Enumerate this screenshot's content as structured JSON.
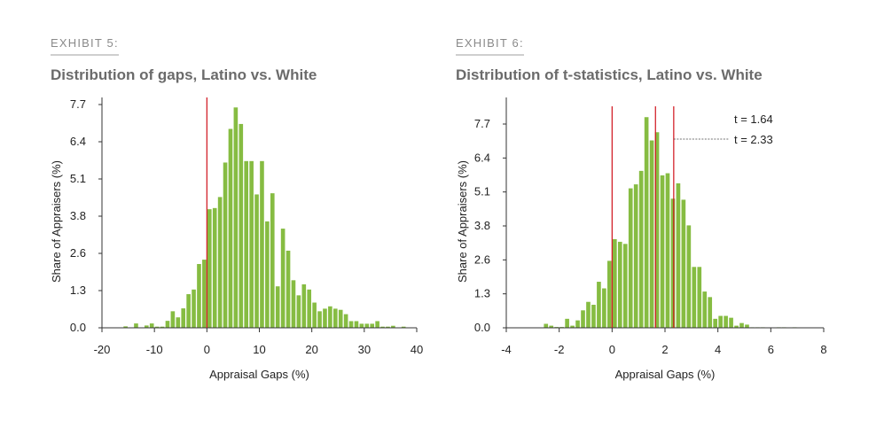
{
  "colors": {
    "bar": "#86bc42",
    "marker_line": "#d0111b",
    "axis": "#333333"
  },
  "exhibits": [
    {
      "label": "EXHIBIT 5:",
      "title": "Distribution of gaps, Latino vs. White"
    },
    {
      "label": "EXHIBIT 6:",
      "title": "Distribution of t-statistics, Latino vs. White"
    }
  ],
  "chart_data": [
    {
      "type": "bar",
      "xlabel": "Appraisal Gaps (%)",
      "ylabel": "Share of Appraisers (%)",
      "xlim": [
        -20,
        40
      ],
      "ylim": [
        0,
        8.1
      ],
      "xticks": [
        "-20",
        "-10",
        "0",
        "10",
        "20",
        "30",
        "40"
      ],
      "xtick_values": [
        -20,
        -10,
        0,
        10,
        20,
        30,
        40
      ],
      "yticks": [
        "0.0",
        "1.3",
        "2.6",
        "3.8",
        "5.1",
        "6.4",
        "7.7"
      ],
      "bin_width": 1,
      "x": [
        -15.5,
        -13.5,
        -11.5,
        -10.5,
        -9.5,
        -8.5,
        -7.5,
        -6.5,
        -5.5,
        -4.5,
        -3.5,
        -2.5,
        -1.5,
        -0.5,
        0.5,
        1.5,
        2.5,
        3.5,
        4.5,
        5.5,
        6.5,
        7.5,
        8.5,
        9.5,
        10.5,
        11.5,
        12.5,
        13.5,
        14.5,
        15.5,
        16.5,
        17.5,
        18.5,
        19.5,
        20.5,
        21.5,
        22.5,
        23.5,
        24.5,
        25.5,
        26.5,
        27.5,
        28.5,
        29.5,
        30.5,
        31.5,
        32.5,
        33.5,
        34.5,
        35.5,
        37.5
      ],
      "values": [
        0.05,
        0.15,
        0.08,
        0.15,
        0.04,
        0.04,
        0.24,
        0.57,
        0.36,
        0.67,
        1.16,
        1.32,
        2.2,
        2.35,
        4.09,
        4.13,
        4.51,
        5.7,
        6.86,
        7.6,
        7.03,
        5.75,
        5.75,
        4.6,
        5.75,
        3.67,
        4.64,
        1.43,
        3.42,
        2.66,
        1.64,
        1.12,
        1.5,
        1.32,
        0.87,
        0.57,
        0.66,
        0.74,
        0.66,
        0.62,
        0.47,
        0.23,
        0.23,
        0.14,
        0.14,
        0.14,
        0.23,
        0.04,
        0.04,
        0.07,
        0.04
      ],
      "vlines": [
        {
          "x": 0
        }
      ],
      "grid": false
    },
    {
      "type": "bar",
      "xlabel": "Appraisal Gaps (%)",
      "ylabel": "Share of Appraisers (%)",
      "xlim": [
        -4,
        8
      ],
      "ylim": [
        0,
        8.7
      ],
      "xticks": [
        "-4",
        "-2",
        "0",
        "2",
        "4",
        "6",
        "8"
      ],
      "xtick_values": [
        -4,
        -2,
        0,
        2,
        4,
        6,
        8
      ],
      "yticks": [
        "0.0",
        "1.3",
        "2.6",
        "3.8",
        "5.1",
        "6.4",
        "7.7"
      ],
      "bin_width": 0.2,
      "x": [
        -2.5,
        -2.3,
        -2.1,
        -1.9,
        -1.7,
        -1.5,
        -1.3,
        -1.1,
        -0.9,
        -0.7,
        -0.5,
        -0.3,
        -0.1,
        0.1,
        0.3,
        0.5,
        0.7,
        0.9,
        1.1,
        1.3,
        1.5,
        1.7,
        1.9,
        2.1,
        2.3,
        2.5,
        2.7,
        2.9,
        3.1,
        3.3,
        3.5,
        3.7,
        3.9,
        4.1,
        4.3,
        4.5,
        4.7,
        4.9,
        5.1,
        5.3,
        5.5,
        5.7,
        6.3,
        6.5,
        6.9
      ],
      "values": [
        0.15,
        0.08,
        0.03,
        0.03,
        0.34,
        0.08,
        0.28,
        0.66,
        0.98,
        0.87,
        1.74,
        1.49,
        2.53,
        3.35,
        3.25,
        3.17,
        5.27,
        5.42,
        5.93,
        7.96,
        7.08,
        7.39,
        5.76,
        5.84,
        4.88,
        5.46,
        4.84,
        3.87,
        2.3,
        2.3,
        1.37,
        1.16,
        0.34,
        0.45,
        0.45,
        0.38,
        0.08,
        0.18,
        0.12,
        0.02,
        0.02,
        0.02,
        0.02,
        0.02,
        0.02
      ],
      "vlines": [
        {
          "x": 0
        },
        {
          "x": 1.64
        },
        {
          "x": 2.33
        }
      ],
      "annotations": [
        {
          "text": "t = 1.64"
        },
        {
          "text": "t = 2.33"
        }
      ],
      "grid": false
    }
  ]
}
